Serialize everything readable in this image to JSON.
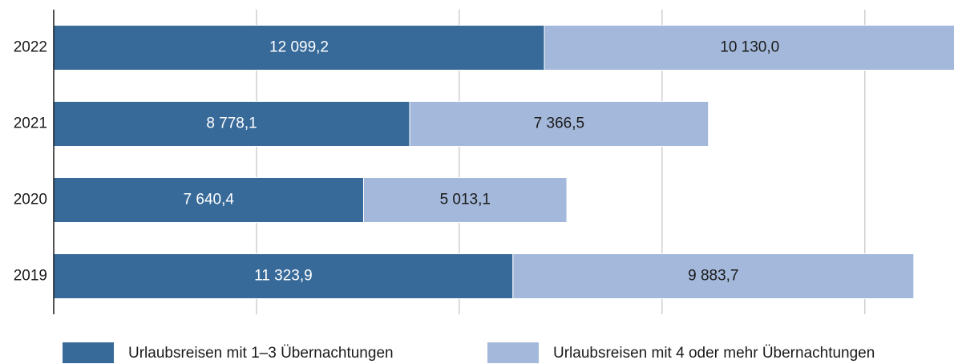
{
  "chart_data": {
    "type": "stacked-barh",
    "categories": [
      "2022",
      "2021",
      "2020",
      "2019"
    ],
    "series": [
      {
        "name": "Urlaubsreisen mit 1–3 Übernachtungen",
        "color": "#376a99",
        "values": [
          12099.2,
          8778.1,
          7640.4,
          11323.9
        ],
        "value_labels": [
          "12 099,2",
          "8 778,1",
          "7 640,4",
          "11 323,9"
        ]
      },
      {
        "name": "Urlaubsreisen mit 4 oder mehr Übernachtungen",
        "color": "#a3b8da",
        "values": [
          10130.0,
          7366.5,
          5013.1,
          9883.7
        ],
        "value_labels": [
          "10 130,0",
          "7 366,5",
          "5 013,1",
          "9 883,7"
        ]
      }
    ],
    "xlim": [
      0,
      22200
    ],
    "xticks": [
      5000,
      10000,
      15000,
      20000
    ],
    "grid": true,
    "legend": "bottom"
  }
}
